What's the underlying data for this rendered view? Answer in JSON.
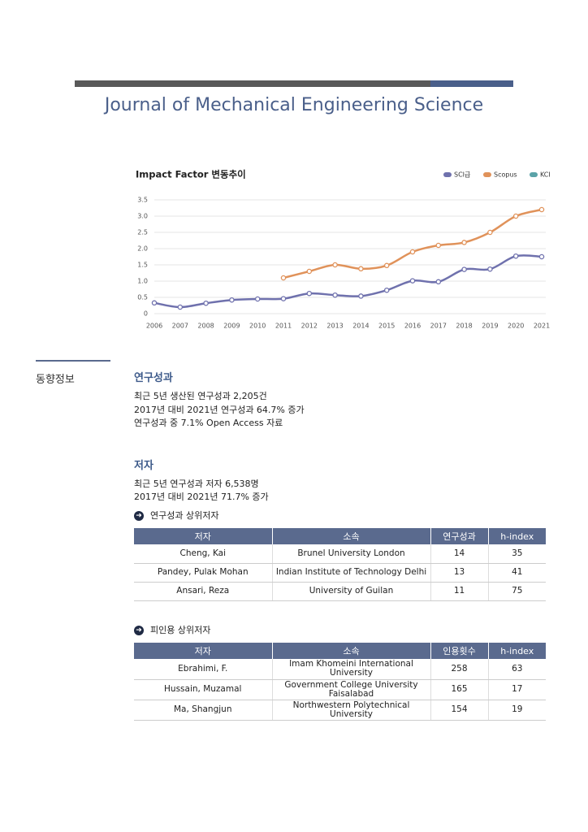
{
  "header": {
    "title": "Journal of Mechanical Engineering Science"
  },
  "chart_data": {
    "type": "line",
    "title": "Impact Factor 변동추이",
    "categories": [
      "2006",
      "2007",
      "2008",
      "2009",
      "2010",
      "2011",
      "2012",
      "2013",
      "2014",
      "2015",
      "2016",
      "2017",
      "2018",
      "2019",
      "2020",
      "2021"
    ],
    "series": [
      {
        "name": "SCI급",
        "color": "#6f71ad",
        "values": [
          0.33,
          0.2,
          0.32,
          0.42,
          0.45,
          0.46,
          0.62,
          0.57,
          0.54,
          0.72,
          1.01,
          0.98,
          1.36,
          1.37,
          1.77,
          1.75
        ]
      },
      {
        "name": "Scopus",
        "color": "#e0925a",
        "values": [
          null,
          null,
          null,
          null,
          null,
          1.1,
          1.3,
          1.5,
          1.38,
          1.48,
          1.9,
          2.1,
          2.19,
          2.5,
          3.0,
          3.2
        ]
      },
      {
        "name": "KCI",
        "color": "#5ba3a8",
        "values": [
          null,
          null,
          null,
          null,
          null,
          null,
          null,
          null,
          null,
          null,
          null,
          null,
          null,
          null,
          null,
          null
        ]
      }
    ],
    "ylim": [
      0,
      3.5
    ],
    "yticks": [
      0,
      0.5,
      {
        "value": 1,
        "label": "1.0"
      },
      1.5,
      {
        "value": 2,
        "label": "2.0"
      },
      2.5,
      {
        "value": 3,
        "label": "3.0"
      },
      3.5
    ],
    "grid": true,
    "legend": "top-right"
  },
  "sidebar": {
    "label": "동향정보"
  },
  "sections": [
    {
      "heading": "연구성과",
      "lines": [
        "최근 5년 생산된 연구성과 2,205건",
        "2017년 대비 2021년 연구성과 64.7% 증가",
        "연구성과 중 7.1% Open Access 자료"
      ]
    },
    {
      "heading": "저자",
      "lines": [
        "최근 5년 연구성과 저자 6,538명",
        "2017년 대비 2021년 71.7% 증가"
      ]
    }
  ],
  "tables": [
    {
      "title": "연구성과 상위저자",
      "headers": [
        "저자",
        "소속",
        "연구성과",
        "h-index"
      ],
      "rows": [
        [
          "Cheng, Kai",
          "Brunel University London",
          14,
          35
        ],
        [
          "Pandey, Pulak Mohan",
          "Indian Institute of Technology Delhi",
          13,
          41
        ],
        [
          "Ansari, Reza",
          "University of Guilan",
          11,
          75
        ]
      ]
    },
    {
      "title": "피인용 상위저자",
      "headers": [
        "저자",
        "소속",
        "인용횟수",
        "h-index"
      ],
      "rows": [
        [
          "Ebrahimi, F.",
          "Imam Khomeini International University",
          258,
          63
        ],
        [
          "Hussain, Muzamal",
          "Government College University Faisalabad",
          165,
          17
        ],
        [
          "Ma, Shangjun",
          "Northwestern Polytechnical University",
          154,
          19
        ]
      ]
    }
  ]
}
